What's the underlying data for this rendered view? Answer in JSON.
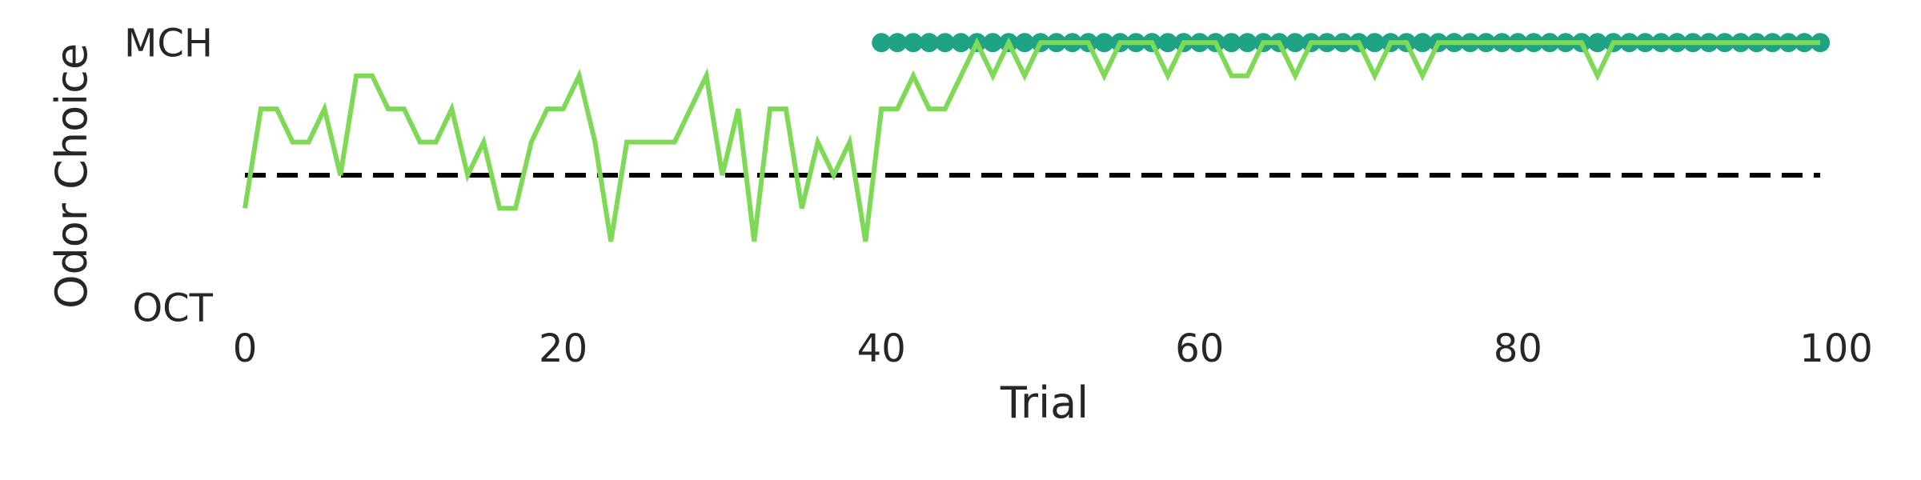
{
  "chart_data": {
    "type": "line",
    "title": "",
    "xlabel": "Trial",
    "ylabel": "Odor Choice",
    "xlim": [
      0,
      100
    ],
    "ylim": [
      -0.04,
      1.04
    ],
    "x_ticks": [
      0,
      20,
      40,
      60,
      80,
      100
    ],
    "x_tick_labels": [
      "0",
      "20",
      "40",
      "60",
      "80",
      "100"
    ],
    "y_ticks": [
      0,
      1
    ],
    "y_tick_labels": [
      "OCT",
      "MCH"
    ],
    "grid": false,
    "legend": "none",
    "series": [
      {
        "kind": "line",
        "color": "#7ed957",
        "x": [
          0,
          1,
          2,
          3,
          4,
          5,
          6,
          7,
          8,
          9,
          10,
          11,
          12,
          13,
          14,
          15,
          16,
          17,
          18,
          19,
          20,
          21,
          22,
          23,
          24,
          25,
          26,
          27,
          28,
          29,
          30,
          31,
          32,
          33,
          34,
          35,
          36,
          37,
          38,
          39,
          40,
          41,
          42,
          43,
          44,
          45,
          46,
          47,
          48,
          49,
          50,
          51,
          52,
          53,
          54,
          55,
          56,
          57,
          58,
          59,
          60,
          61,
          62,
          63,
          64,
          65,
          66,
          67,
          68,
          69,
          70,
          71,
          72,
          73,
          74,
          75,
          76,
          77,
          78,
          79,
          80,
          81,
          82,
          83,
          84,
          85,
          86,
          87,
          88,
          89,
          90,
          91,
          92,
          93,
          94,
          95,
          96,
          97,
          98,
          99
        ],
        "y": [
          0.375,
          0.75,
          0.75,
          0.625,
          0.625,
          0.75,
          0.5,
          0.875,
          0.875,
          0.75,
          0.75,
          0.625,
          0.625,
          0.75,
          0.5,
          0.625,
          0.375,
          0.375,
          0.625,
          0.75,
          0.75,
          0.875,
          0.625,
          0.25,
          0.625,
          0.625,
          0.625,
          0.625,
          0.75,
          0.875,
          0.5,
          0.75,
          0.25,
          0.75,
          0.75,
          0.375,
          0.625,
          0.5,
          0.625,
          0.25,
          0.75,
          0.75,
          0.875,
          0.75,
          0.75,
          0.875,
          1.0,
          0.875,
          1.0,
          0.875,
          1.0,
          1.0,
          1.0,
          1.0,
          0.875,
          1.0,
          1.0,
          1.0,
          0.875,
          1.0,
          1.0,
          1.0,
          0.875,
          0.875,
          1.0,
          1.0,
          0.875,
          1.0,
          1.0,
          1.0,
          1.0,
          0.875,
          1.0,
          1.0,
          0.875,
          1.0,
          1.0,
          1.0,
          1.0,
          1.0,
          1.0,
          1.0,
          1.0,
          1.0,
          1.0,
          0.875,
          1.0,
          1.0,
          1.0,
          1.0,
          1.0,
          1.0,
          1.0,
          1.0,
          1.0,
          1.0,
          1.0,
          1.0,
          1.0,
          1.0
        ]
      },
      {
        "kind": "scatter",
        "color": "#1fa385",
        "x": [
          40,
          41,
          42,
          43,
          44,
          45,
          46,
          47,
          48,
          49,
          50,
          51,
          52,
          53,
          54,
          55,
          56,
          57,
          58,
          59,
          60,
          61,
          62,
          63,
          64,
          65,
          66,
          67,
          68,
          69,
          70,
          71,
          72,
          73,
          74,
          75,
          76,
          77,
          78,
          79,
          80,
          81,
          82,
          83,
          84,
          85,
          86,
          87,
          88,
          89,
          90,
          91,
          92,
          93,
          94,
          95,
          96,
          97,
          98,
          99
        ],
        "y": [
          1,
          1,
          1,
          1,
          1,
          1,
          1,
          1,
          1,
          1,
          1,
          1,
          1,
          1,
          1,
          1,
          1,
          1,
          1,
          1,
          1,
          1,
          1,
          1,
          1,
          1,
          1,
          1,
          1,
          1,
          1,
          1,
          1,
          1,
          1,
          1,
          1,
          1,
          1,
          1,
          1,
          1,
          1,
          1,
          1,
          1,
          1,
          1,
          1,
          1,
          1,
          1,
          1,
          1,
          1,
          1,
          1,
          1,
          1,
          1
        ]
      }
    ],
    "reference_line": {
      "y": 0.5,
      "style": "dashed",
      "color": "#000000"
    }
  }
}
